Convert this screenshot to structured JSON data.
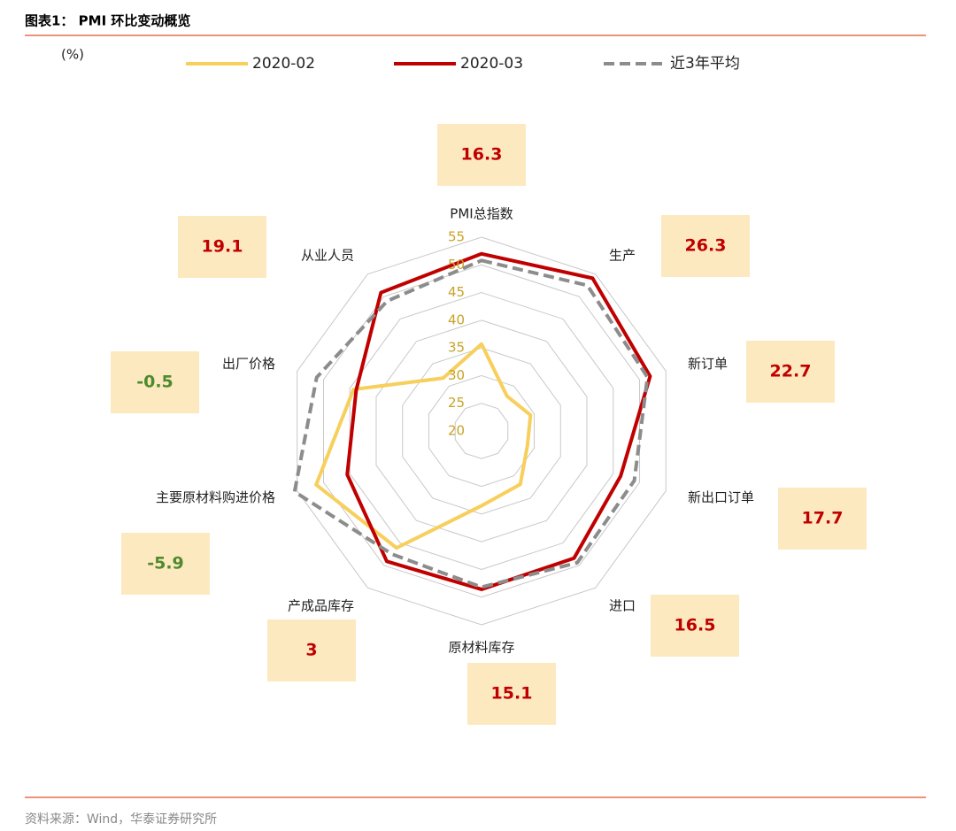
{
  "chart_data": {
    "type": "radar",
    "title": "图表1： PMI 环比变动概览",
    "unit": "(%)",
    "source": "资料来源：Wind，华泰证券研究所",
    "categories": [
      "PMI总指数",
      "生产",
      "新订单",
      "新出口订单",
      "进口",
      "原材料库存",
      "产成品库存",
      "主要原材料购进价格",
      "出厂价格",
      "从业人员"
    ],
    "series": [
      {
        "name": "2020-02",
        "color": "#f7cf5c",
        "style": "solid",
        "values": [
          35.7,
          27.8,
          29.3,
          28.7,
          31.9,
          33.5,
          46.1,
          51.4,
          44.3,
          31.8
        ]
      },
      {
        "name": "2020-03",
        "color": "#c00000",
        "style": "solid",
        "values": [
          52.0,
          54.1,
          52.0,
          46.4,
          48.4,
          48.6,
          49.1,
          45.5,
          43.8,
          50.9
        ]
      },
      {
        "name": "近3年平均",
        "color": "#8c8c8c",
        "style": "dashed",
        "values": [
          50.8,
          52.5,
          51.5,
          49.0,
          49.4,
          48.2,
          47.5,
          55.5,
          51.3,
          49.0
        ]
      }
    ],
    "changes": [
      16.3,
      26.3,
      22.7,
      17.7,
      16.5,
      15.1,
      3,
      -5.9,
      -0.5,
      19.1
    ],
    "positive_color": "#c00000",
    "negative_color": "#4e8a2e",
    "ylim": [
      20,
      55
    ],
    "yticks": [
      20,
      25,
      30,
      35,
      40,
      45,
      50,
      55
    ],
    "grid": true
  }
}
